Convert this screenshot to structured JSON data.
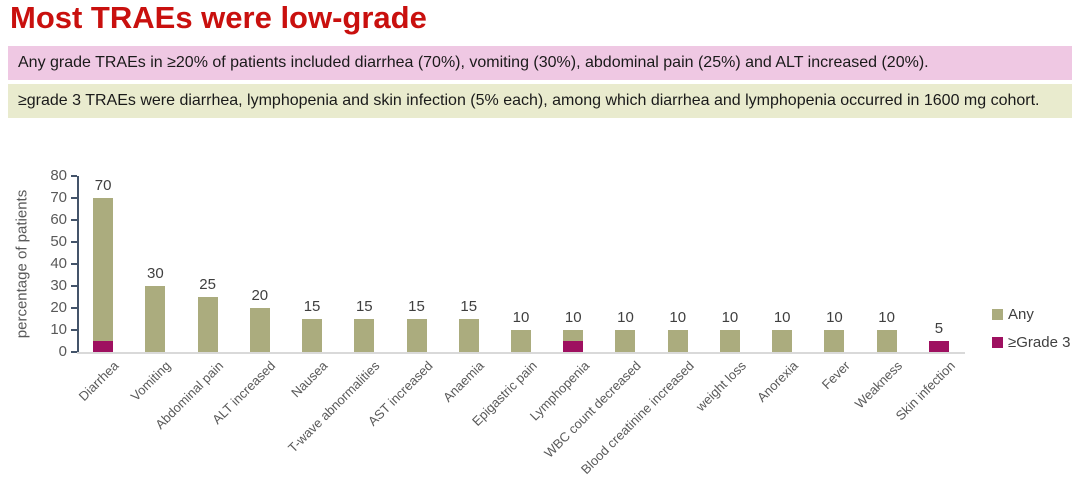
{
  "title": "Most TRAEs were low-grade",
  "colors": {
    "title_red": "#C9100E",
    "note_pink_bg": "#EFC8E3",
    "note_green_bg": "#E9EBCE"
  },
  "notes": [
    "Any grade TRAEs in ≥20% of patients included diarrhea (70%), vomiting (30%), abdominal pain (25%) and ALT increased (20%).",
    "≥grade 3 TRAEs were diarrhea, lymphopenia and skin infection (5% each), among which diarrhea and lymphopenia occurred in 1600 mg cohort."
  ],
  "chart_data": {
    "type": "bar",
    "title": "",
    "xlabel": "",
    "ylabel": "percentage of patients",
    "ylim": [
      0,
      80
    ],
    "ytick_step": 10,
    "grid": false,
    "legend_position": "right",
    "categories": [
      "Diarrhea",
      "Vomiting",
      "Abdominal pain",
      "ALT increased",
      "Nausea",
      "T-wave abnormalities",
      "AST increased",
      "Anaemia",
      "Epigastric pain",
      "Lymphopenia",
      "WBC count decreased",
      "Blood creatinine increased",
      "weight loss",
      "Anorexia",
      "Fever",
      "Weakness",
      "Skin infection"
    ],
    "series": [
      {
        "name": "Any",
        "color": "#ABAC7E",
        "values": [
          70,
          30,
          25,
          20,
          15,
          15,
          15,
          15,
          10,
          10,
          10,
          10,
          10,
          10,
          10,
          10,
          5
        ]
      },
      {
        "name": "≥Grade 3",
        "color": "#9E1060",
        "values": [
          5,
          0,
          0,
          0,
          0,
          0,
          0,
          0,
          0,
          5,
          0,
          0,
          0,
          0,
          0,
          0,
          5
        ]
      }
    ],
    "bar_labels": [
      70,
      30,
      25,
      20,
      15,
      15,
      15,
      15,
      10,
      10,
      10,
      10,
      10,
      10,
      10,
      10,
      5
    ],
    "axis_color": "#44546A",
    "baseline_color": "#D9D9D9",
    "tick_label_color": "#595959",
    "value_label_color": "#3F3F3F"
  }
}
